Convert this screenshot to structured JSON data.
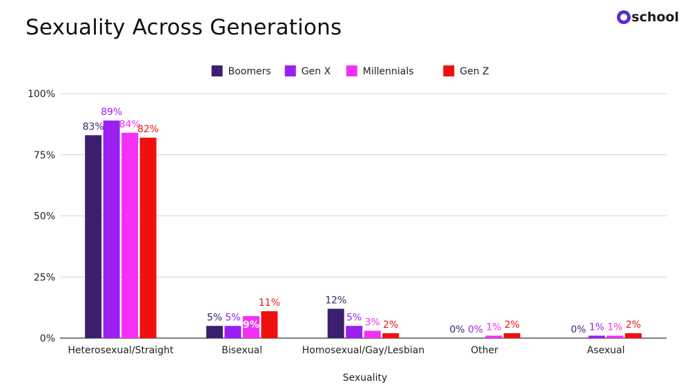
{
  "brand": {
    "name": "school",
    "logo_icon": "ring-icon",
    "color": "#5b2bd6"
  },
  "chart_data": {
    "type": "bar",
    "title": "Sexuality Across Generations",
    "xlabel": "Sexuality",
    "ylabel": "",
    "ylim": [
      0,
      100
    ],
    "yticks": [
      "0%",
      "25%",
      "50%",
      "75%",
      "100%"
    ],
    "ytick_values": [
      0,
      25,
      50,
      75,
      100
    ],
    "grid": true,
    "legend_position": "top-center",
    "categories": [
      "Heterosexual/Straight",
      "Bisexual",
      "Homosexual/Gay/Lesbian",
      "Other",
      "Asexual"
    ],
    "series": [
      {
        "name": "Boomers",
        "color": "#3b1f6e",
        "values": [
          83,
          5,
          12,
          0,
          0
        ],
        "labels": [
          "83%",
          "5%",
          "12%",
          "0%",
          "0%"
        ]
      },
      {
        "name": "Gen X",
        "color": "#9b1ff0",
        "values": [
          89,
          5,
          5,
          0,
          1
        ],
        "labels": [
          "89%",
          "5%",
          "5%",
          "0%",
          "1%"
        ]
      },
      {
        "name": "Millennials",
        "color": "#f52ff5",
        "values": [
          84,
          9,
          3,
          1,
          1
        ],
        "labels": [
          "84%",
          "9%",
          "3%",
          "1%",
          "1%"
        ]
      },
      {
        "name": "Gen Z",
        "color": "#f01010",
        "values": [
          82,
          11,
          2,
          2,
          2
        ],
        "labels": [
          "82%",
          "11%",
          "2%",
          "2%",
          "2%"
        ]
      }
    ]
  }
}
